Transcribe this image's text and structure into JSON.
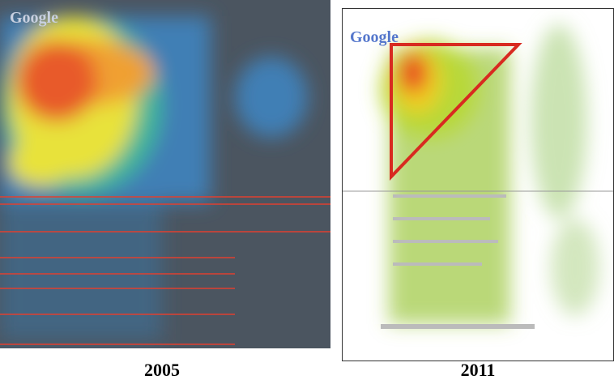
{
  "panels": [
    {
      "logo": "Google",
      "caption": "2005"
    },
    {
      "logo": "Google",
      "caption": "2011"
    }
  ]
}
